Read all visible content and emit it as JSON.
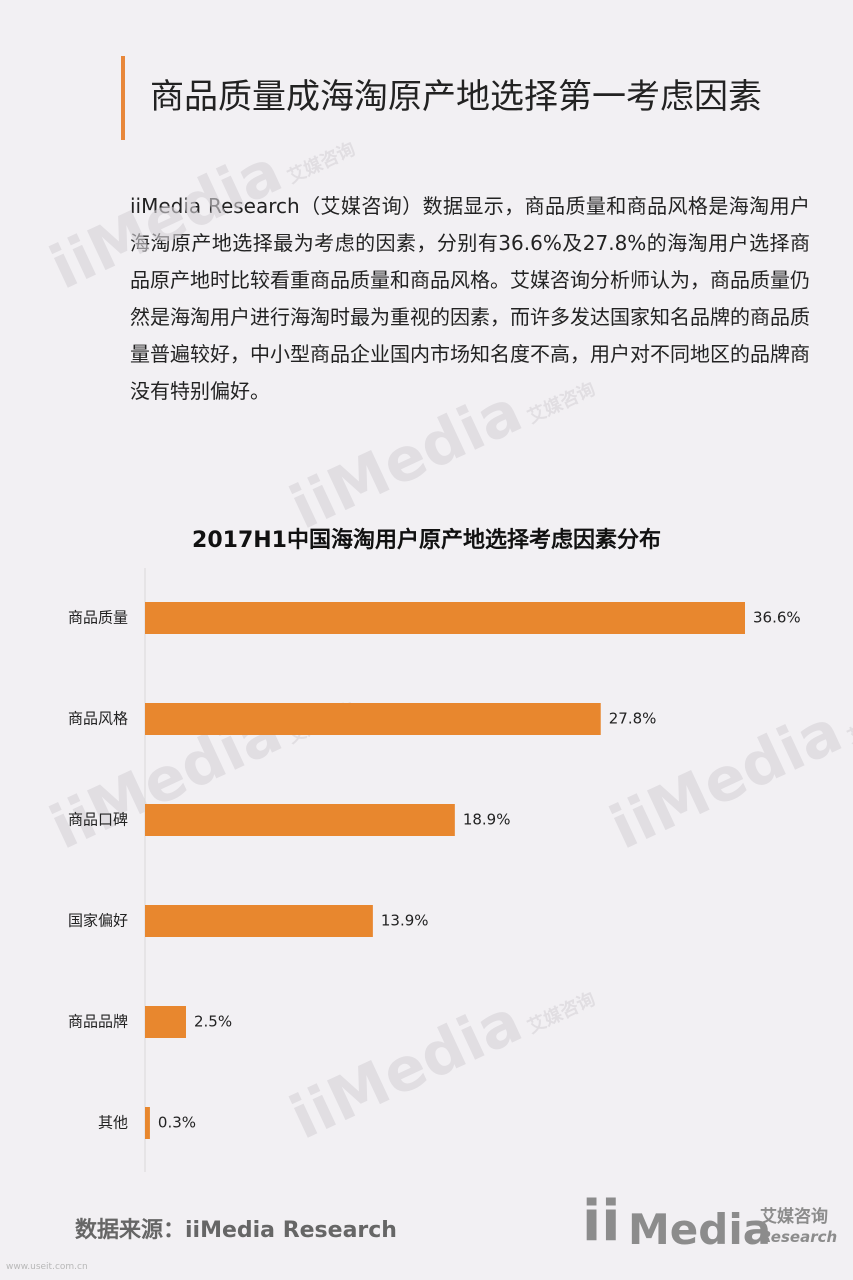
{
  "header": {
    "title": "商品质量成海淘原产地选择第一考虑因素",
    "accent_color": "#e8873a"
  },
  "intro": {
    "text": "iiMedia Research（艾媒咨询）数据显示，商品质量和商品风格是海淘用户海淘原产地选择最为考虑的因素，分别有36.6%及27.8%的海淘用户选择商品原产地时比较看重商品质量和商品风格。艾媒咨询分析师认为，商品质量仍然是海淘用户进行海淘时最为重视的因素，而许多发达国家知名品牌的商品质量普遍较好，中小型商品企业国内市场知名度不高，用户对不同地区的品牌商没有特别偏好。"
  },
  "watermark": {
    "main": "iiMedia",
    "cn": "艾媒咨询",
    "en": "Research"
  },
  "chart_data": {
    "type": "bar",
    "orientation": "horizontal",
    "title": "2017H1中国海淘用户原产地选择考虑因素分布",
    "xlabel": "",
    "ylabel": "",
    "categories": [
      "商品质量",
      "商品风格",
      "商品口碑",
      "国家偏好",
      "商品品牌",
      "其他"
    ],
    "values": [
      36.6,
      27.8,
      18.9,
      13.9,
      2.5,
      0.3
    ],
    "value_labels": [
      "36.6%",
      "27.8%",
      "18.9%",
      "13.9%",
      "2.5%",
      "0.3%"
    ],
    "xlim": [
      0,
      36.6
    ],
    "grid": false,
    "legend": "none",
    "bar_color": "#e8872e"
  },
  "footer": {
    "source": "数据来源：iiMedia Research",
    "logo_main": "iiMedia",
    "logo_cn": "艾媒咨询",
    "logo_en": "Research",
    "url": "www.useit.com.cn"
  }
}
